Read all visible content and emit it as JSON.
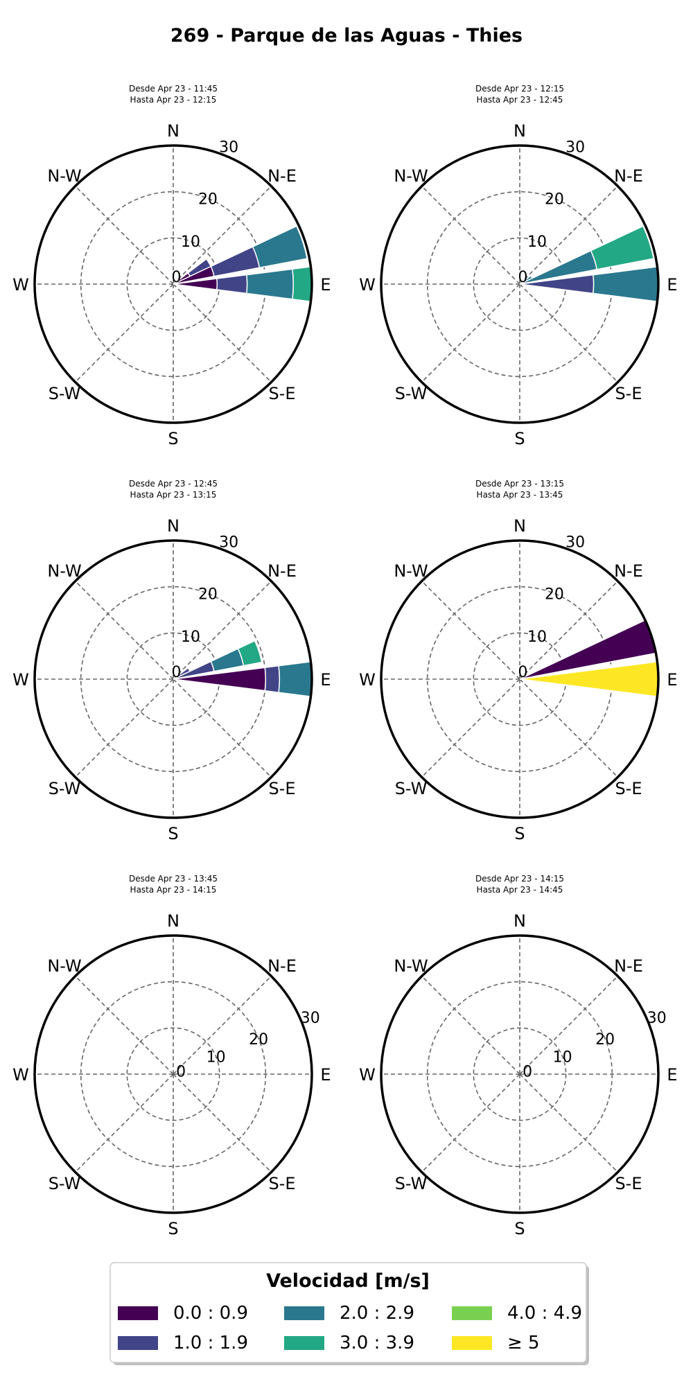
{
  "title": "269 - Parque de las Aguas - Thies",
  "chart_data": {
    "type": "windrose",
    "title": "269 - Parque de las Aguas - Thies",
    "directions": [
      "N",
      "N-E",
      "E",
      "S-E",
      "S",
      "S-W",
      "W",
      "N-W"
    ],
    "direction_angles": [
      0,
      45,
      90,
      135,
      180,
      225,
      270,
      315
    ],
    "radial_ticks": [
      "0",
      "10",
      "20",
      "30"
    ],
    "radial_max": 30,
    "grid": true,
    "legend": {
      "title": "Velocidad [m/s]",
      "placement": "bottom-center",
      "bins": [
        {
          "label": "0.0 : 0.9",
          "color": "#440154"
        },
        {
          "label": "1.0 : 1.9",
          "color": "#414487"
        },
        {
          "label": "2.0 : 2.9",
          "color": "#2a788e"
        },
        {
          "label": "3.0 : 3.9",
          "color": "#22a884"
        },
        {
          "label": "4.0 : 4.9",
          "color": "#7ad151"
        },
        {
          "label": "≥  5",
          "color": "#fde725"
        }
      ]
    },
    "panels": [
      {
        "line1": "Desde Apr 23 - 11:45",
        "line2": "Hasta Apr 23 - 12:15",
        "tick_label_angle": 22,
        "sectors": [
          {
            "dir": 60,
            "cum": [
              4,
              9,
              0,
              0,
              0,
              0
            ]
          },
          {
            "dir": 72,
            "cum": [
              9,
              19,
              29.5,
              0,
              0,
              0
            ]
          },
          {
            "dir": 90,
            "cum": [
              9.5,
              16,
              26,
              30,
              0,
              0
            ]
          }
        ]
      },
      {
        "line1": "Desde Apr 23 - 12:15",
        "line2": "Hasta Apr 23 - 12:45",
        "tick_label_angle": 22,
        "sectors": [
          {
            "dir": 60,
            "cum": [
              0,
              0,
              3,
              0,
              0,
              0
            ]
          },
          {
            "dir": 72,
            "cum": [
              0,
              0,
              17,
              29.5,
              0,
              0
            ]
          },
          {
            "dir": 90,
            "cum": [
              0,
              16,
              30,
              0,
              0,
              0
            ]
          }
        ]
      },
      {
        "line1": "Desde Apr 23 - 12:45",
        "line2": "Hasta Apr 23 - 13:15",
        "tick_label_angle": 22,
        "sectors": [
          {
            "dir": 60,
            "cum": [
              0,
              4,
              0,
              0,
              0,
              0
            ]
          },
          {
            "dir": 72,
            "cum": [
              0,
              9,
              15.5,
              19.5,
              0,
              0
            ]
          },
          {
            "dir": 90,
            "cum": [
              20,
              23,
              30,
              0,
              0,
              0
            ]
          }
        ]
      },
      {
        "line1": "Desde Apr 23 - 13:15",
        "line2": "Hasta Apr 23 - 13:45",
        "tick_label_angle": 22,
        "sectors": [
          {
            "dir": 72,
            "cum": [
              30,
              0,
              0,
              0,
              0,
              0
            ]
          },
          {
            "dir": 90,
            "cum": [
              0,
              0,
              0,
              0,
              0,
              30
            ]
          }
        ]
      },
      {
        "line1": "Desde Apr 23 - 13:45",
        "line2": "Hasta Apr 23 - 14:15",
        "tick_label_angle": 67.5,
        "sectors": []
      },
      {
        "line1": "Desde Apr 23 - 14:15",
        "line2": "Hasta Apr 23 - 14:45",
        "tick_label_angle": 67.5,
        "sectors": []
      }
    ]
  }
}
